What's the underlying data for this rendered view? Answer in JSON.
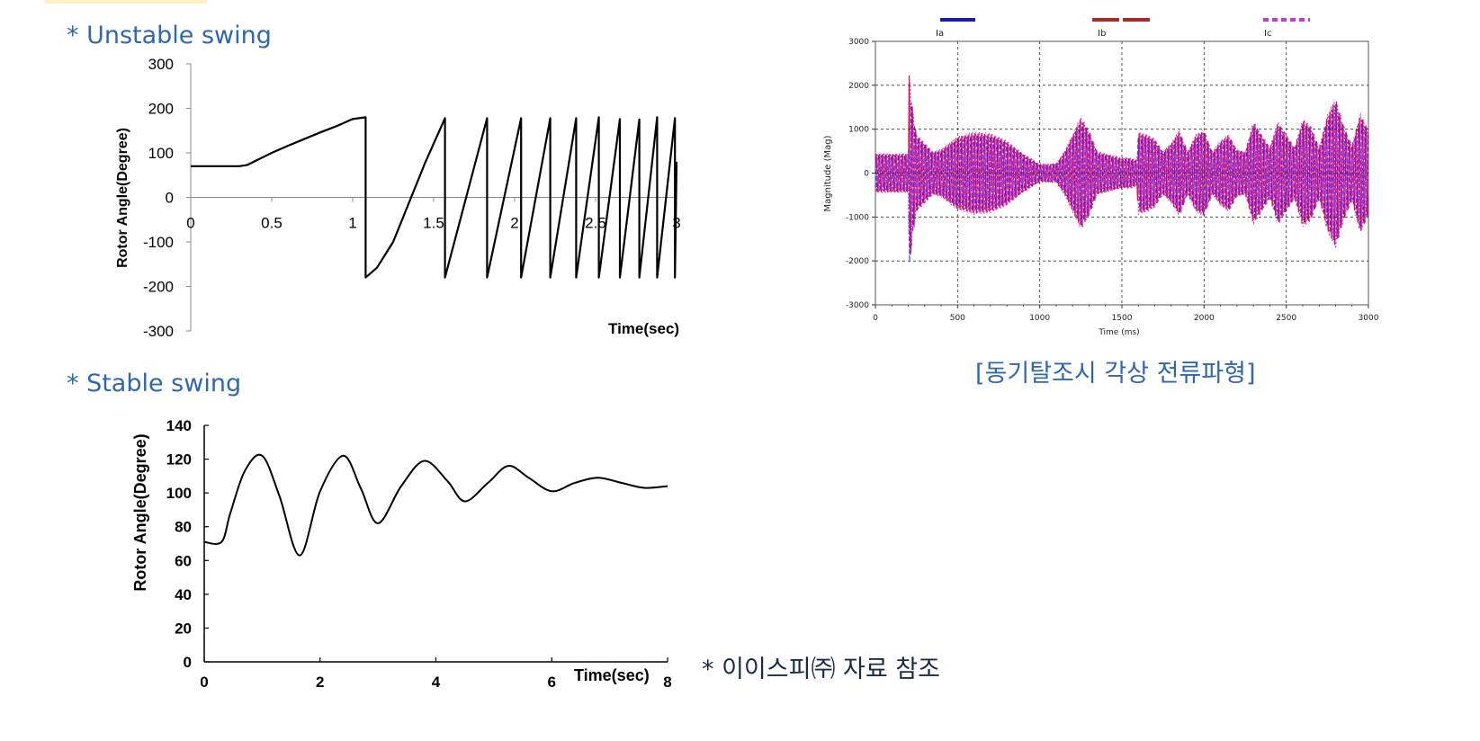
{
  "captions": {
    "unstable": "* Unstable swing",
    "stable": "* Stable swing",
    "waveform": "[동기탈조시 각상 전류파형]",
    "reference": "* 이이스피㈜ 자료 참조"
  },
  "colors": {
    "caption": "#2f67b1",
    "phase_a": "#1a1aa8",
    "phase_b": "#a52a2a",
    "phase_c": "#c43ad3",
    "wave_red": "#e8102a",
    "wave_blue": "#2b2bff",
    "wave_magenta": "#e020e0"
  },
  "chart_data": [
    {
      "type": "line",
      "xlabel": "Time(sec)",
      "ylabel": "Rotor Angle(Degree)",
      "xlim": [
        0,
        3
      ],
      "ylim": [
        -300,
        300
      ],
      "xticks": [
        0,
        0.5,
        1,
        1.5,
        2,
        2.5,
        3
      ],
      "yticks": [
        300,
        200,
        100,
        0,
        -100,
        -200,
        -300
      ],
      "xtick_labels": [
        "0",
        "0.5",
        "1",
        "1.5",
        "2",
        "2.5",
        "3"
      ],
      "ytick_labels": [
        "300",
        "200",
        "100",
        "0",
        "-100",
        "-200",
        "-300"
      ],
      "series": [
        {
          "x": [
            0,
            0.3,
            0.35,
            0.4,
            0.5,
            0.6,
            0.7,
            0.8,
            0.9,
            1.0,
            1.08,
            1.08,
            1.15,
            1.25,
            1.35,
            1.45,
            1.57,
            1.57,
            1.83,
            1.83,
            2.04,
            2.04,
            2.22,
            2.22,
            2.38,
            2.38,
            2.52,
            2.52,
            2.65,
            2.65,
            2.77,
            2.77,
            2.88,
            2.88,
            2.99,
            2.99,
            3.0
          ],
          "y": [
            70,
            70,
            73,
            82,
            100,
            116,
            131,
            146,
            160,
            176,
            180,
            -180,
            -158,
            -100,
            -10,
            80,
            178,
            -180,
            178,
            -180,
            178,
            -180,
            178,
            -180,
            178,
            -180,
            180,
            -180,
            176,
            -180,
            175,
            -180,
            180,
            -180,
            178,
            -180,
            80
          ]
        }
      ]
    },
    {
      "type": "line",
      "xlabel": "Time(sec)",
      "ylabel": "Rotor Angle(Degree)",
      "xlim": [
        0,
        8
      ],
      "ylim": [
        0,
        140
      ],
      "xticks": [
        0,
        2,
        4,
        6,
        8
      ],
      "yticks": [
        140,
        120,
        100,
        80,
        60,
        40,
        20,
        0
      ],
      "xtick_labels": [
        "0",
        "2",
        "4",
        "6",
        "8"
      ],
      "ytick_labels": [
        "140",
        "120",
        "100",
        "80",
        "60",
        "40",
        "20",
        "0"
      ],
      "series": [
        {
          "x": [
            0,
            0.3,
            0.45,
            0.7,
            1.0,
            1.3,
            1.65,
            2.0,
            2.4,
            2.7,
            3.0,
            3.4,
            3.8,
            4.2,
            4.5,
            4.9,
            5.25,
            5.6,
            6.0,
            6.4,
            6.8,
            7.2,
            7.6,
            8.0
          ],
          "y": [
            71,
            71,
            88,
            113,
            122,
            98,
            63,
            101,
            122,
            103,
            82,
            104,
            119,
            107,
            95,
            106,
            116,
            109,
            101,
            106,
            109,
            106,
            103,
            104
          ]
        }
      ]
    },
    {
      "type": "line",
      "xlabel": "Time (ms)",
      "ylabel": "Magnitude (Mag)",
      "xlim": [
        0,
        3000
      ],
      "ylim": [
        -3000,
        3000
      ],
      "grid": true,
      "xticks": [
        0,
        500,
        1000,
        1500,
        2000,
        2500,
        3000
      ],
      "yticks": [
        3000,
        2000,
        1000,
        0,
        -1000,
        -2000,
        -3000
      ],
      "xtick_labels": [
        "0",
        "500",
        "1000",
        "1500",
        "2000",
        "2500",
        "3000"
      ],
      "ytick_labels": [
        "3000",
        "2000",
        "1000",
        "0",
        "-1000",
        "-2000",
        "-3000"
      ],
      "legend": "top",
      "series": [
        {
          "name": "Ia",
          "style": "solid"
        },
        {
          "name": "Ib",
          "style": "dashed"
        },
        {
          "name": "Ic",
          "style": "dotted"
        }
      ],
      "envelope": {
        "x": [
          0,
          200,
          205,
          215,
          230,
          250,
          300,
          350,
          400,
          500,
          600,
          700,
          800,
          900,
          1000,
          1050,
          1100,
          1150,
          1200,
          1250,
          1300,
          1350,
          1400,
          1450,
          1500,
          1550,
          1590,
          1600,
          1650,
          1700,
          1750,
          1800,
          1850,
          1900,
          1950,
          2000,
          2050,
          2100,
          2150,
          2200,
          2250,
          2300,
          2350,
          2400,
          2450,
          2500,
          2550,
          2600,
          2650,
          2700,
          2750,
          2800,
          2850,
          2900,
          2950,
          3000
        ],
        "y": [
          450,
          450,
          2350,
          1900,
          1400,
          900,
          700,
          500,
          550,
          850,
          950,
          920,
          750,
          450,
          200,
          200,
          220,
          500,
          900,
          1300,
          1000,
          500,
          450,
          400,
          350,
          350,
          300,
          950,
          900,
          800,
          500,
          700,
          1000,
          500,
          900,
          1000,
          500,
          750,
          900,
          550,
          500,
          1200,
          900,
          600,
          1200,
          900,
          600,
          1250,
          1100,
          600,
          1350,
          1750,
          1100,
          650,
          1400,
          1000
        ]
      }
    }
  ]
}
